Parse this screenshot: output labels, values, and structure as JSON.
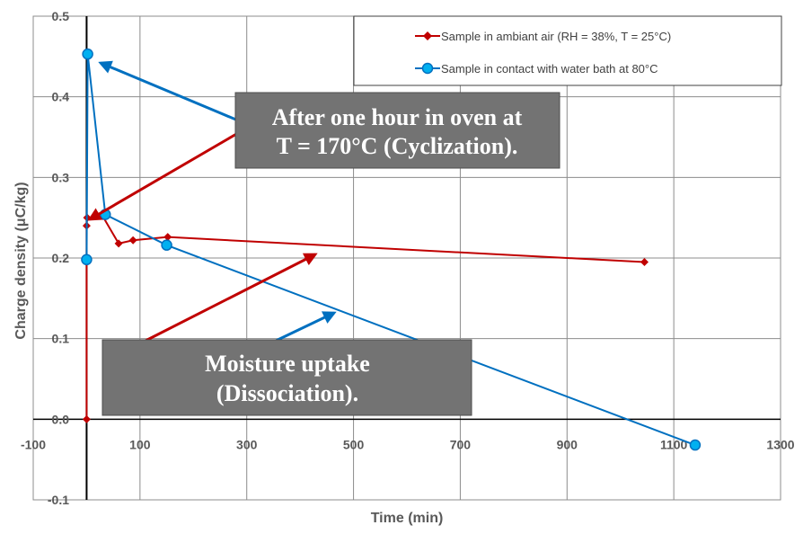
{
  "chart_data": {
    "type": "line",
    "title": "",
    "xlabel": "Time (min)",
    "ylabel": "Charge density (μC/kg)",
    "xlim": [
      -100,
      1300
    ],
    "ylim": [
      -0.1,
      0.5
    ],
    "x_ticks": [
      -100,
      100,
      300,
      500,
      700,
      900,
      1100,
      1300
    ],
    "x_tick_labels": [
      "-100",
      "100",
      "300",
      "500",
      "700",
      "900",
      "1100",
      "1300"
    ],
    "x_grid": [
      -100,
      100,
      300,
      500,
      700,
      900,
      1100,
      1300
    ],
    "y_ticks": [
      -0.1,
      0.0,
      0.1,
      0.2,
      0.3,
      0.4,
      0.5
    ],
    "y_tick_labels": [
      "-0.1",
      "0.0",
      "0.1",
      "0.2",
      "0.3",
      "0.4",
      "0.5"
    ],
    "grid": true,
    "legend_position": "top-right",
    "series": [
      {
        "name": "Sample in ambiant air (RH = 38%, T = 25°C)",
        "color": "#C00000",
        "marker": "diamond",
        "x": [
          0,
          0,
          1,
          30,
          60,
          87,
          152,
          1045
        ],
        "y": [
          0.0,
          0.24,
          0.25,
          0.252,
          0.218,
          0.222,
          0.226,
          0.195
        ]
      },
      {
        "name": "Sample in contact with water bath at 80°C",
        "color": "#0070C0",
        "marker": "circle",
        "x": [
          0,
          2,
          35,
          150,
          1140
        ],
        "y": [
          0.198,
          0.453,
          0.254,
          0.216,
          -0.032
        ]
      }
    ],
    "annotations": [
      {
        "text_lines": [
          "After one hour in oven at",
          "T = 170°C (Cyclization)."
        ]
      },
      {
        "text_lines": [
          "Moisture uptake",
          "(Dissociation)."
        ]
      }
    ]
  },
  "colors": {
    "red_series": "#C00000",
    "blue_series": "#0070C0",
    "callout_fill": "#737373",
    "grid": "#8C8C8C",
    "axis_zero": "#000000"
  }
}
